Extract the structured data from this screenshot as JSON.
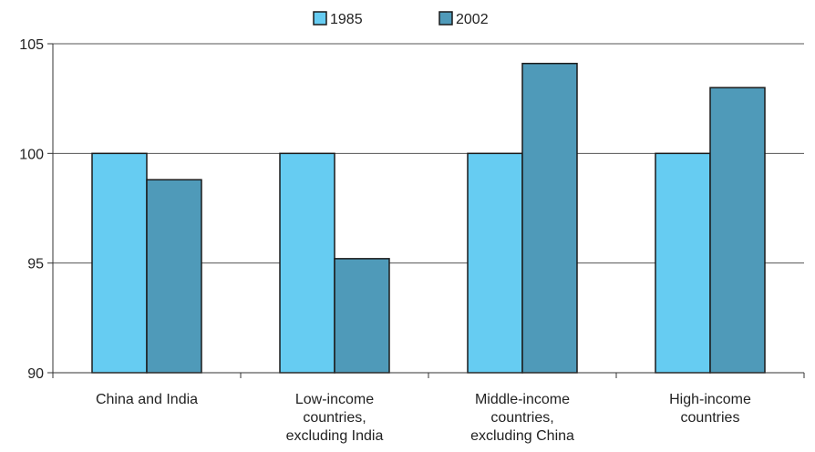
{
  "chart_data": {
    "type": "bar",
    "categories": [
      [
        "China and India"
      ],
      [
        "Low-income",
        "countries,",
        "excluding India"
      ],
      [
        "Middle-income",
        "countries,",
        "excluding China"
      ],
      [
        "High-income",
        "countries"
      ]
    ],
    "series": [
      {
        "name": "1985",
        "values": [
          100,
          100,
          100,
          100
        ],
        "color": "#66ccf2"
      },
      {
        "name": "2002",
        "values": [
          98.8,
          95.2,
          104.1,
          103.0
        ],
        "color": "#4f9ab9"
      }
    ],
    "title": "",
    "xlabel": "",
    "ylabel": "",
    "ylim": [
      90,
      105
    ],
    "yticks": [
      "90",
      "95",
      "100",
      "105"
    ],
    "grid": true,
    "legend_position": "top-center"
  }
}
